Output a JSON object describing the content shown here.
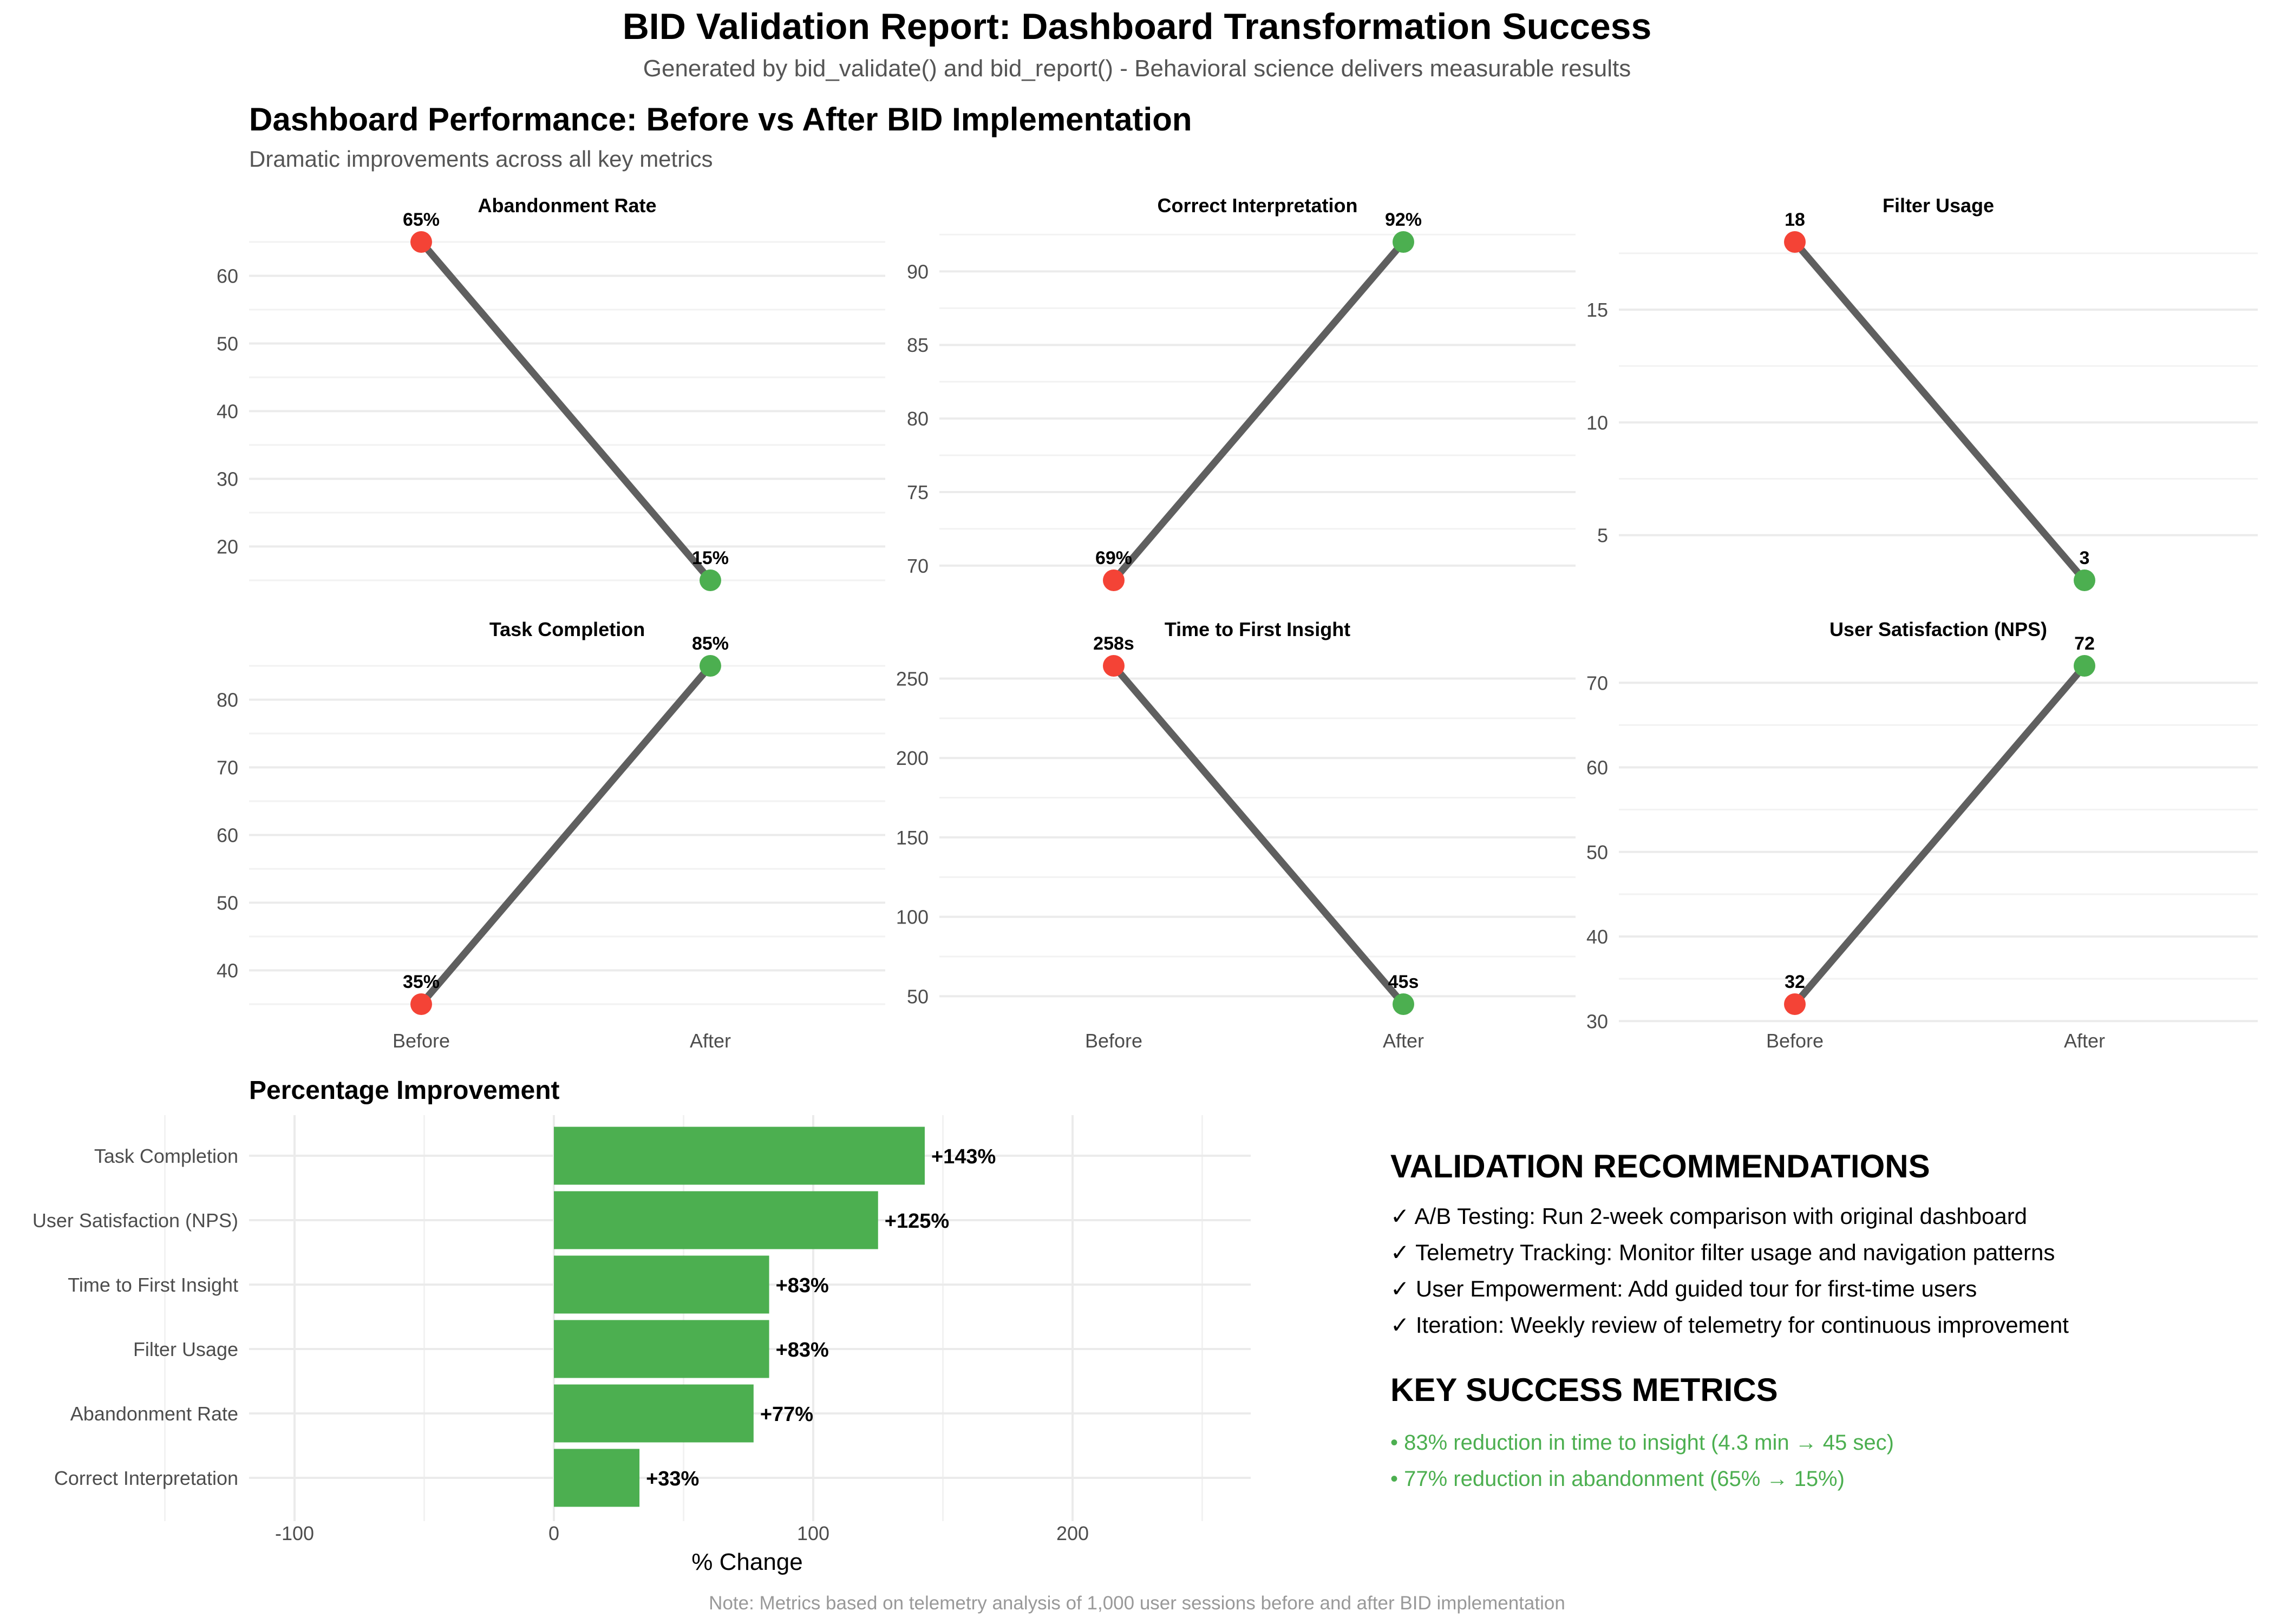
{
  "header": {
    "title": "BID Validation Report: Dashboard Transformation Success",
    "subtitle": "Generated by bid_validate() and bid_report() - Behavioral science delivers measurable results"
  },
  "section": {
    "title": "Dashboard Performance: Before vs After BID Implementation",
    "subtitle": "Dramatic improvements across all key metrics"
  },
  "colors": {
    "before": "#F44336",
    "after": "#4CAF50",
    "line": "#5F5F5F",
    "bar": "#4CAF50",
    "grid": "#EBEBEB"
  },
  "chart_data": [
    {
      "type": "line",
      "title": "Abandonment Rate",
      "x": [
        "Before",
        "After"
      ],
      "y": [
        65,
        15
      ],
      "labels": [
        "65%",
        "15%"
      ],
      "yticks": [
        20,
        30,
        40,
        50,
        60
      ]
    },
    {
      "type": "line",
      "title": "Correct Interpretation",
      "x": [
        "Before",
        "After"
      ],
      "y": [
        69,
        92
      ],
      "labels": [
        "69%",
        "92%"
      ],
      "yticks": [
        70,
        75,
        80,
        85,
        90
      ]
    },
    {
      "type": "line",
      "title": "Filter Usage",
      "x": [
        "Before",
        "After"
      ],
      "y": [
        18,
        3
      ],
      "labels": [
        "18",
        "3"
      ],
      "yticks": [
        5,
        10,
        15
      ]
    },
    {
      "type": "line",
      "title": "Task Completion",
      "x": [
        "Before",
        "After"
      ],
      "y": [
        35,
        85
      ],
      "labels": [
        "35%",
        "85%"
      ],
      "yticks": [
        40,
        50,
        60,
        70,
        80
      ]
    },
    {
      "type": "line",
      "title": "Time to First Insight",
      "x": [
        "Before",
        "After"
      ],
      "y": [
        258,
        45
      ],
      "labels": [
        "258s",
        "45s"
      ],
      "yticks": [
        50,
        100,
        150,
        200,
        250
      ]
    },
    {
      "type": "line",
      "title": "User Satisfaction (NPS)",
      "x": [
        "Before",
        "After"
      ],
      "y": [
        32,
        72
      ],
      "labels": [
        "32",
        "72"
      ],
      "yticks": [
        30,
        40,
        50,
        60,
        70
      ]
    },
    {
      "type": "bar",
      "orientation": "horizontal",
      "title": "Percentage Improvement",
      "xlabel": "% Change",
      "categories": [
        "Task Completion",
        "User Satisfaction (NPS)",
        "Time to First Insight",
        "Filter Usage",
        "Abandonment Rate",
        "Correct Interpretation"
      ],
      "values": [
        143,
        125,
        83,
        83,
        77,
        33
      ],
      "labels": [
        "+143%",
        "+125%",
        "+83%",
        "+83%",
        "+77%",
        "+33%"
      ],
      "xticks": [
        -100,
        0,
        100,
        200
      ],
      "xlim": [
        -122,
        268
      ]
    }
  ],
  "recommendations": {
    "title": "VALIDATION RECOMMENDATIONS",
    "items": [
      "✓ A/B Testing: Run 2-week comparison with original dashboard",
      "✓ Telemetry Tracking: Monitor filter usage and navigation patterns",
      "✓ User Empowerment: Add guided tour for first-time users",
      "✓ Iteration: Weekly review of telemetry for continuous improvement"
    ]
  },
  "metrics": {
    "title": "KEY SUCCESS METRICS",
    "items": [
      "• 83% reduction in time to insight (4.3 min → 45 sec)",
      "• 77% reduction in abandonment (65% → 15%)"
    ]
  },
  "footnote": "Note: Metrics based on telemetry analysis of 1,000 user sessions before and after BID implementation"
}
